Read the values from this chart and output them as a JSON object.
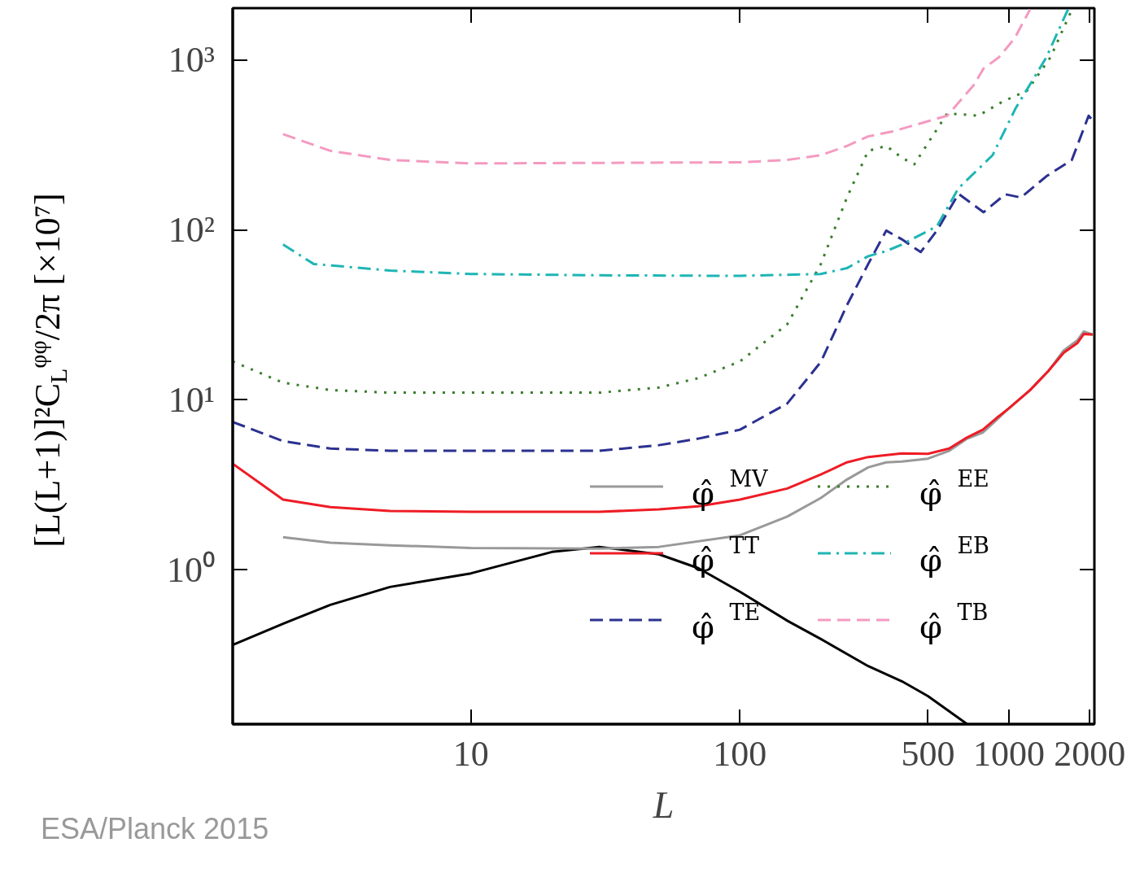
{
  "chart_data": {
    "type": "line",
    "xlabel": "L",
    "ylabel": "[L(L+1)]²C$_{L}$$^{φφ}$/2π [×10⁷]",
    "xlim": [
      1.3,
      2080
    ],
    "xticks": [
      10,
      100,
      500,
      1000,
      2000
    ],
    "ylim": [
      0.123,
      2020
    ],
    "yticks": [
      {
        "value": 1,
        "label": "10⁰"
      },
      {
        "value": 10,
        "label": "10¹"
      },
      {
        "value": 100,
        "label": "10²"
      },
      {
        "value": 1000,
        "label": "10³"
      }
    ],
    "log": "xy",
    "grid": false,
    "legend": "bottom right",
    "annotations": [
      "ESA/Planck 2015"
    ],
    "series": [
      {
        "color": "#000000",
        "line_style": "solid",
        "x": [
          1.3,
          2,
          3,
          5,
          10,
          20,
          30,
          50,
          70,
          100,
          150,
          200,
          300,
          400,
          500,
          700
        ],
        "values": [
          0.36,
          0.48,
          0.62,
          0.79,
          0.95,
          1.27,
          1.36,
          1.23,
          1.02,
          0.74,
          0.5,
          0.39,
          0.27,
          0.22,
          0.18,
          0.123
        ]
      },
      {
        "name": "φ̂$^{MV}$",
        "color": "#999999",
        "line_style": "solid",
        "x": [
          2,
          3,
          5,
          10,
          30,
          50,
          100,
          150,
          200,
          250,
          300,
          350,
          400,
          500,
          600,
          700,
          800,
          900,
          1000,
          1200,
          1400,
          1600,
          1800,
          1900,
          2050
        ],
        "values": [
          1.55,
          1.44,
          1.39,
          1.34,
          1.33,
          1.36,
          1.59,
          2.05,
          2.64,
          3.39,
          4.0,
          4.28,
          4.33,
          4.5,
          5.0,
          5.9,
          6.4,
          7.6,
          8.9,
          11.4,
          14.7,
          19.5,
          22.4,
          25.2,
          24.2
        ]
      },
      {
        "name": "φ̂$^{TT}$",
        "color": "#ee1c25",
        "line_style": "solid",
        "x": [
          1.3,
          2,
          3,
          5,
          10,
          30,
          50,
          70,
          100,
          150,
          200,
          250,
          300,
          400,
          500,
          600,
          700,
          800,
          900,
          1000,
          1200,
          1400,
          1600,
          1800,
          1900,
          2050
        ],
        "values": [
          4.2,
          2.58,
          2.33,
          2.21,
          2.19,
          2.19,
          2.26,
          2.36,
          2.58,
          3.0,
          3.63,
          4.28,
          4.6,
          4.83,
          4.8,
          5.16,
          6.0,
          6.66,
          7.8,
          8.9,
          11.4,
          14.7,
          18.9,
          21.6,
          24.4,
          24.2
        ]
      },
      {
        "name": "φ̂$^{TE}$",
        "color": "#2b3190",
        "line_style": "dashed",
        "x": [
          1.3,
          2,
          3,
          5,
          10,
          30,
          50,
          70,
          100,
          150,
          200,
          250,
          300,
          350,
          400,
          470,
          540,
          650,
          805,
          970,
          1110,
          1380,
          1715,
          1980,
          2050
        ],
        "values": [
          7.4,
          5.7,
          5.16,
          5.0,
          5.0,
          5.0,
          5.4,
          5.9,
          6.66,
          9.5,
          16.7,
          36,
          63,
          99,
          88,
          74,
          99,
          163,
          127,
          162,
          155,
          207,
          258,
          470,
          442
        ]
      },
      {
        "name": "φ̂$^{EE}$",
        "color": "#3a7d2c",
        "line_style": "dotted",
        "x": [
          1.3,
          2,
          3,
          5,
          30,
          50,
          70,
          100,
          150,
          200,
          250,
          300,
          350,
          400,
          445,
          590,
          770,
          950,
          1170,
          1430,
          1720
        ],
        "values": [
          16.8,
          12.6,
          11.4,
          11.0,
          11.0,
          11.8,
          13.4,
          16.8,
          27.8,
          63,
          155,
          292,
          312,
          266,
          243,
          485,
          470,
          570,
          660,
          1040,
          2000
        ]
      },
      {
        "name": "φ̂$^{EB}$",
        "color": "#1fb5b5",
        "line_style": "dashdot",
        "x": [
          2,
          2.6,
          5,
          10,
          30,
          100,
          200,
          250,
          300,
          350,
          400,
          540,
          650,
          870,
          1060,
          1380,
          1660
        ],
        "values": [
          82,
          63,
          57.6,
          55,
          54,
          53.6,
          55,
          59.5,
          70,
          75,
          82,
          105,
          176,
          275,
          520,
          1040,
          1990
        ]
      },
      {
        "name": "φ̂$^{TB}$",
        "color": "#f49ac1",
        "line_style": "dashed",
        "x": [
          2,
          3,
          5,
          10,
          100,
          150,
          200,
          250,
          300,
          370,
          590,
          740,
          805,
          920,
          1050,
          1200
        ],
        "values": [
          366,
          292,
          258,
          246,
          250,
          258,
          275,
          312,
          355,
          380,
          470,
          710,
          890,
          1040,
          1340,
          1990
        ]
      }
    ]
  }
}
